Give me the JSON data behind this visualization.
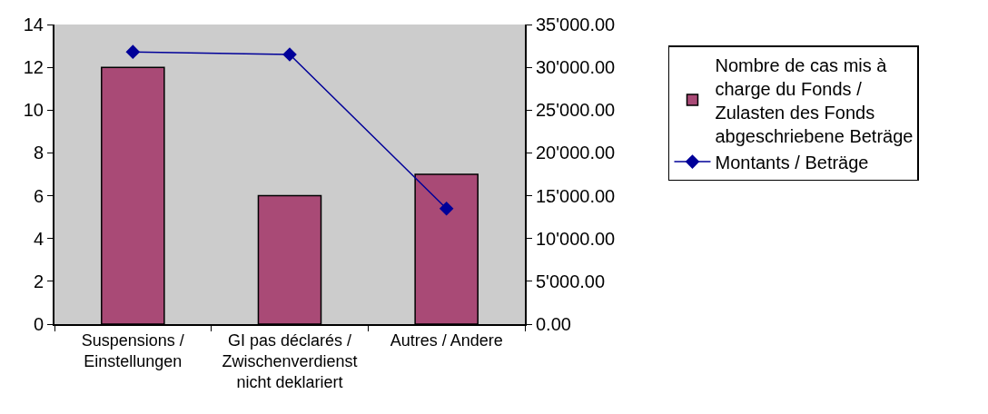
{
  "chart_data": {
    "type": "bar",
    "categories": [
      "Suspensions / Einstellungen",
      "GI pas déclarés / Zwischenverdienst nicht deklariert",
      "Autres / Andere"
    ],
    "series": [
      {
        "name": "Nombre de cas mis à charge du Fonds / Zulasten des Fonds abgeschriebene Beträge",
        "color": "#a94a76",
        "values": [
          12,
          6,
          7
        ]
      },
      {
        "name": "Montants / Beträge",
        "type": "line",
        "axis": "y2",
        "color": "#000099",
        "values": [
          31800,
          31500,
          13500
        ]
      }
    ],
    "marker": "diamond",
    "ylim": [
      0,
      14
    ],
    "yticks": [
      0,
      2,
      4,
      6,
      8,
      10,
      12,
      14
    ],
    "y2lim": [
      0,
      35000
    ],
    "y2ticks": [
      {
        "value": 0,
        "label": "0.00"
      },
      {
        "value": 5000,
        "label": "5'000.00"
      },
      {
        "value": 10000,
        "label": "10'000.00"
      },
      {
        "value": 15000,
        "label": "15'000.00"
      },
      {
        "value": 20000,
        "label": "20'000.00"
      },
      {
        "value": 25000,
        "label": "25'000.00"
      },
      {
        "value": 30000,
        "label": "30'000.00"
      },
      {
        "value": 35000,
        "label": "35'000.00"
      }
    ],
    "legend": "right"
  }
}
